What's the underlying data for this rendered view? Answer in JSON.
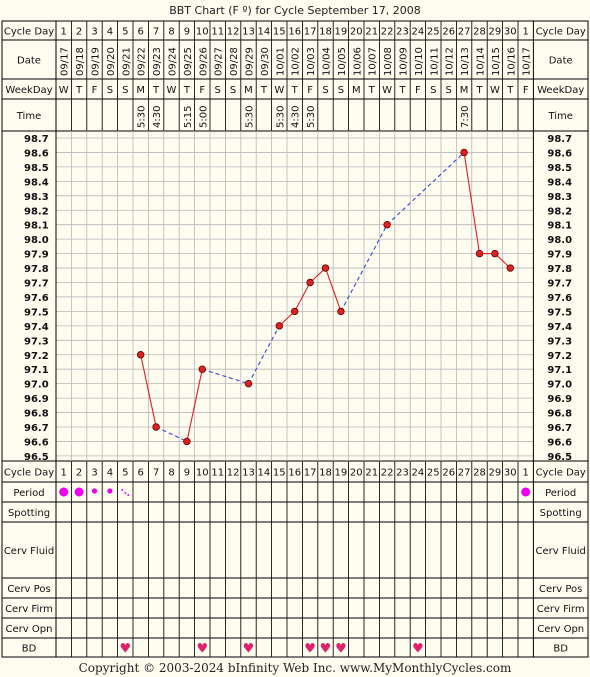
{
  "title": "BBT Chart (F º) for Cycle September 17, 2008",
  "copyright": "Copyright © 2003-2024 bInfinity Web Inc.      www.MyMonthlyCycles.com",
  "row_labels": {
    "cycle_day": "Cycle Day",
    "date": "Date",
    "weekday": "WeekDay",
    "time": "Time",
    "period": "Period",
    "spotting": "Spotting",
    "cerv_fluid": "Cerv Fluid",
    "cerv_pos": "Cerv Pos",
    "cerv_firm": "Cerv Firm",
    "cerv_opn": "Cerv Opn",
    "bd": "BD"
  },
  "cycle_days": [
    "1",
    "2",
    "3",
    "4",
    "5",
    "6",
    "7",
    "8",
    "9",
    "10",
    "11",
    "12",
    "13",
    "14",
    "15",
    "16",
    "17",
    "18",
    "19",
    "20",
    "21",
    "22",
    "23",
    "24",
    "25",
    "26",
    "27",
    "28",
    "29",
    "30",
    "1"
  ],
  "dates": [
    "09/17",
    "09/18",
    "09/19",
    "09/20",
    "09/21",
    "09/22",
    "09/23",
    "09/24",
    "09/25",
    "09/26",
    "09/27",
    "09/28",
    "09/29",
    "09/30",
    "10/01",
    "10/02",
    "10/03",
    "10/04",
    "10/05",
    "10/06",
    "10/07",
    "10/08",
    "10/09",
    "10/10",
    "10/11",
    "10/12",
    "10/13",
    "10/14",
    "10/15",
    "10/16",
    "10/17"
  ],
  "weekdays": [
    "W",
    "T",
    "F",
    "S",
    "S",
    "M",
    "T",
    "W",
    "T",
    "F",
    "S",
    "S",
    "M",
    "T",
    "W",
    "T",
    "F",
    "S",
    "S",
    "M",
    "T",
    "W",
    "T",
    "F",
    "S",
    "S",
    "M",
    "T",
    "W",
    "T",
    "F"
  ],
  "times": [
    "",
    "",
    "",
    "",
    "",
    "5:30",
    "4:30",
    "",
    "5:15",
    "5:00",
    "",
    "",
    "5:30",
    "",
    "5:30",
    "4:30",
    "5:30",
    "",
    "",
    "",
    "",
    "",
    "",
    "",
    "",
    "",
    "7:30",
    "",
    "",
    "",
    ""
  ],
  "period": [
    "heavy",
    "heavy",
    "medium",
    "medium",
    "spotting",
    "",
    "",
    "",
    "",
    "",
    "",
    "",
    "",
    "",
    "",
    "",
    "",
    "",
    "",
    "",
    "",
    "",
    "",
    "",
    "",
    "",
    "",
    "",
    "",
    "",
    "heavy"
  ],
  "bd": [
    false,
    false,
    false,
    false,
    true,
    false,
    false,
    false,
    false,
    true,
    false,
    false,
    true,
    false,
    false,
    false,
    true,
    true,
    true,
    false,
    false,
    false,
    false,
    true,
    false,
    false,
    false,
    false,
    false,
    false,
    false
  ],
  "chart_data": {
    "type": "line",
    "title": "BBT Chart (F º) for Cycle September 17, 2008",
    "xlabel": "Cycle Day",
    "ylabel": "",
    "ylim": [
      96.5,
      98.7
    ],
    "y_ticks": [
      "98.7",
      "98.6",
      "98.5",
      "98.4",
      "98.3",
      "98.2",
      "98.1",
      "98.0",
      "97.9",
      "97.8",
      "97.7",
      "97.6",
      "97.5",
      "97.4",
      "97.3",
      "97.2",
      "97.1",
      "97.0",
      "96.9",
      "96.8",
      "96.7",
      "96.6",
      "96.5"
    ],
    "x": [
      1,
      2,
      3,
      4,
      5,
      6,
      7,
      8,
      9,
      10,
      11,
      12,
      13,
      14,
      15,
      16,
      17,
      18,
      19,
      20,
      21,
      22,
      23,
      24,
      25,
      26,
      27,
      28,
      29,
      30,
      31
    ],
    "temperatures": [
      null,
      null,
      null,
      null,
      null,
      97.2,
      96.7,
      null,
      96.6,
      97.1,
      null,
      null,
      97.0,
      null,
      97.4,
      97.5,
      97.7,
      97.8,
      97.5,
      null,
      null,
      98.1,
      null,
      null,
      null,
      null,
      98.6,
      97.9,
      97.9,
      97.8,
      null
    ],
    "grid": true,
    "colors": {
      "line": "#e02020",
      "interpolated": "#3344dd",
      "marker": "#dd2222",
      "grid": "#b8b8b8",
      "heart": "#e0206a",
      "period": "#ee00ee"
    }
  }
}
